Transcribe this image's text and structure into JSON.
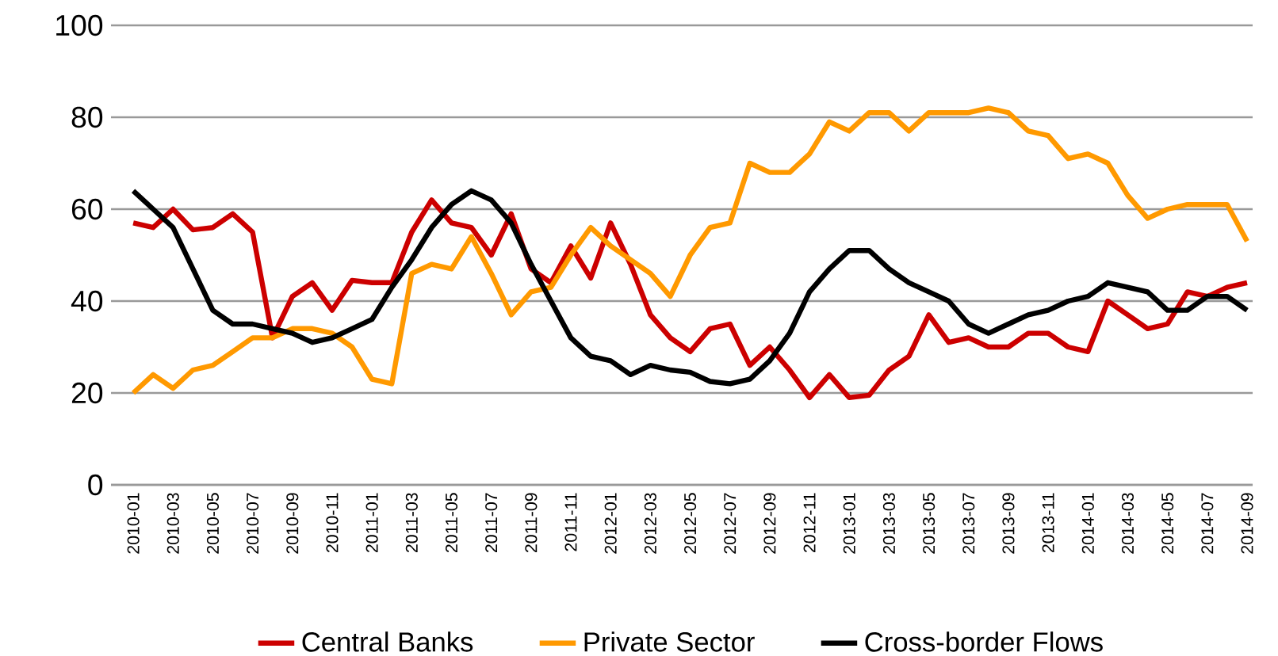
{
  "chart_data": {
    "type": "line",
    "categories": [
      "2010-01",
      null,
      "2010-03",
      null,
      "2010-05",
      null,
      "2010-07",
      null,
      "2010-09",
      null,
      "2010-11",
      null,
      "2011-01",
      null,
      "2011-03",
      null,
      "2011-05",
      null,
      "2011-07",
      null,
      "2011-09",
      null,
      "2011-11",
      null,
      "2012-01",
      null,
      "2012-03",
      null,
      "2012-05",
      null,
      "2012-07",
      null,
      "2012-09",
      null,
      "2012-11",
      null,
      "2013-01",
      null,
      "2013-03",
      null,
      "2013-05",
      null,
      "2013-07",
      null,
      "2013-09",
      null,
      "2013-11",
      null,
      "2014-01",
      null,
      "2014-03",
      null,
      "2014-05",
      null,
      "2014-07",
      null,
      "2014-09"
    ],
    "series": [
      {
        "name": "Central Banks",
        "color": "#cc0000",
        "values": [
          57,
          56,
          60,
          55.5,
          56,
          59,
          55,
          32,
          41,
          44,
          38,
          44.5,
          44,
          44,
          55,
          62,
          57,
          56,
          50,
          59,
          47,
          44,
          52,
          45,
          57,
          48,
          37,
          32,
          29,
          34,
          35,
          26,
          30,
          25,
          19,
          24,
          19,
          19.5,
          25,
          28,
          37,
          31,
          32,
          30,
          30,
          33,
          33,
          30,
          29,
          40,
          37,
          34,
          35,
          42,
          41,
          43,
          44
        ]
      },
      {
        "name": "Private Sector",
        "color": "#ff9900",
        "values": [
          20,
          24,
          21,
          25,
          26,
          29,
          32,
          32,
          34,
          34,
          33,
          30,
          23,
          22,
          46,
          48,
          47,
          54,
          46,
          37,
          42,
          43,
          50,
          56,
          52,
          49,
          46,
          41,
          50,
          56,
          57,
          70,
          68,
          68,
          72,
          79,
          77,
          81,
          81,
          77,
          81,
          81,
          81,
          82,
          81,
          77,
          76,
          71,
          72,
          70,
          63,
          58,
          60,
          61,
          61,
          61,
          53
        ]
      },
      {
        "name": "Cross-border Flows",
        "color": "#000000",
        "values": [
          64,
          60,
          56,
          47,
          38,
          35,
          35,
          34,
          33,
          31,
          32,
          34,
          36,
          43,
          49,
          56,
          61,
          64,
          62,
          57,
          48,
          40,
          32,
          28,
          27,
          24,
          26,
          25,
          24.5,
          22.5,
          22,
          23,
          27,
          33,
          42,
          47,
          51,
          51,
          47,
          44,
          42,
          40,
          35,
          33,
          35,
          37,
          38,
          40,
          41,
          44,
          43,
          42,
          38,
          38,
          41,
          41,
          38
        ]
      }
    ],
    "ylim": [
      0,
      100
    ],
    "yticks": [
      0,
      20,
      40,
      60,
      80,
      100
    ],
    "grid": "y",
    "legend": "bottom",
    "marker": "none",
    "line_style": "solid"
  }
}
